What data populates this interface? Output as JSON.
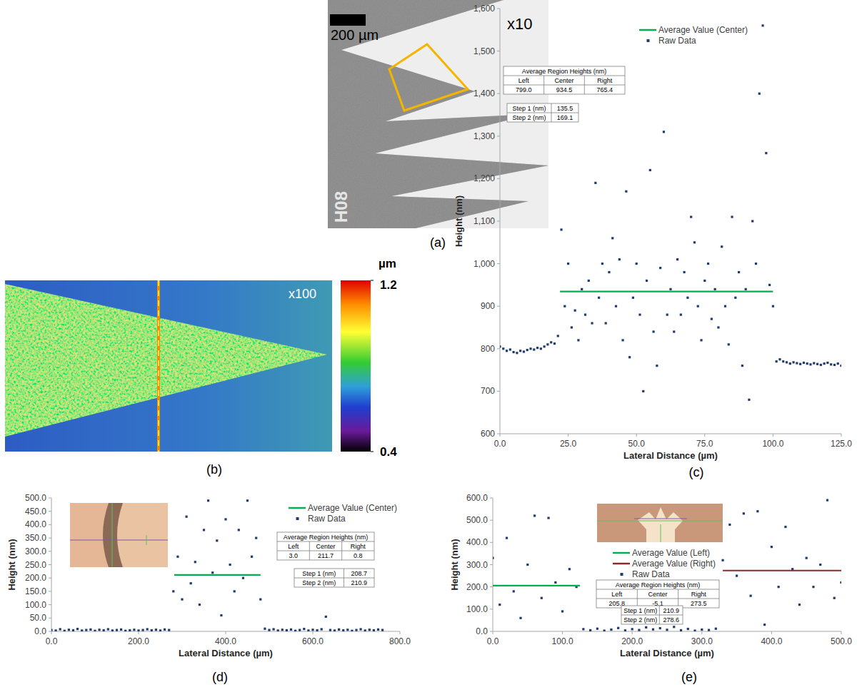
{
  "figure": {
    "panel_a": {
      "label": "(a)",
      "scale_bar": "200 µm",
      "magnification": "x10",
      "sample_id": "H08"
    },
    "panel_b": {
      "label": "(b)",
      "magnification": "x100",
      "colorbar": {
        "unit": "µm",
        "range": [
          0.4,
          1.2
        ],
        "ticks": [
          0.4,
          1.2
        ]
      }
    }
  },
  "chart_data": [
    {
      "type": "scatter",
      "panel_label": "(c)",
      "x_label": "Lateral Distance (µm)",
      "y_label": "Height (nm)",
      "xlim": [
        0,
        125
      ],
      "ylim": [
        600,
        1600
      ],
      "xticks": [
        {
          "value": 0,
          "label": "0.0"
        },
        {
          "value": 25,
          "label": "25.0"
        },
        {
          "value": 50,
          "label": "50.0"
        },
        {
          "value": 75,
          "label": "75.0"
        },
        {
          "value": 100,
          "label": "100.0"
        },
        {
          "value": 125,
          "label": "125.0"
        }
      ],
      "yticks": [
        600,
        700,
        800,
        900,
        {
          "value": 1000,
          "label": "1,000"
        },
        {
          "value": 1100,
          "label": "1,100"
        },
        {
          "value": 1200,
          "label": "1,200"
        },
        {
          "value": 1300,
          "label": "1,300"
        },
        {
          "value": 1400,
          "label": "1,400"
        },
        {
          "value": 1500,
          "label": "1,500"
        },
        {
          "value": 1600,
          "label": "1,600"
        }
      ],
      "grid": false,
      "legend": "top",
      "series": [
        {
          "name": "Average Value (Center)",
          "type": "line",
          "color": "#00b050",
          "x": [
            22,
            100
          ],
          "values": [
            934.5,
            934.5
          ]
        },
        {
          "name": "Raw Data",
          "type": "scatter",
          "marker": "square",
          "color": "#1f3b6f",
          "x": [
            0,
            1.25,
            2.5,
            3.75,
            5,
            6.25,
            7.5,
            8.75,
            10,
            11.25,
            12.5,
            13.75,
            15,
            16.25,
            17.5,
            18.75,
            20,
            21.25,
            22.5,
            23.75,
            25,
            26.25,
            27.5,
            28.75,
            30,
            31.25,
            32.5,
            33.75,
            35,
            36.25,
            37.5,
            38.75,
            40,
            41.25,
            42.5,
            43.75,
            45,
            46.25,
            47.5,
            48.75,
            50,
            51.25,
            52.5,
            53.75,
            55,
            56.25,
            57.5,
            58.75,
            60,
            61.25,
            62.5,
            63.75,
            65,
            66.25,
            67.5,
            68.75,
            70,
            71.25,
            72.5,
            73.75,
            75,
            76.25,
            77.5,
            78.75,
            80,
            81.25,
            82.5,
            83.75,
            85,
            86.25,
            87.5,
            88.75,
            90,
            91.25,
            92.5,
            93.75,
            95,
            96.25,
            97.5,
            98.75,
            100,
            101.25,
            102.5,
            103.75,
            105,
            106.25,
            107.5,
            108.75,
            110,
            111.25,
            112.5,
            113.75,
            115,
            116.25,
            117.5,
            118.75,
            120,
            121.25,
            122.5,
            123.75,
            125
          ],
          "values": [
            805,
            800,
            795,
            798,
            792,
            790,
            795,
            793,
            797,
            800,
            798,
            802,
            800,
            805,
            810,
            815,
            812,
            830,
            1080,
            900,
            1000,
            850,
            890,
            820,
            940,
            880,
            960,
            860,
            1190,
            920,
            1000,
            860,
            980,
            1060,
            900,
            1010,
            820,
            1170,
            780,
            920,
            1000,
            880,
            700,
            960,
            1220,
            840,
            760,
            990,
            1310,
            880,
            940,
            840,
            1010,
            880,
            980,
            920,
            1110,
            1050,
            900,
            820,
            960,
            1000,
            870,
            940,
            850,
            1040,
            900,
            810,
            1110,
            920,
            980,
            760,
            940,
            680,
            1100,
            1000,
            1400,
            1560,
            1260,
            950,
            900,
            770,
            775,
            770,
            768,
            765,
            768,
            766,
            764,
            767,
            765,
            763,
            766,
            764,
            762,
            765,
            767,
            763,
            762,
            765,
            760
          ]
        }
      ],
      "region_table": {
        "title": "Average Region Heights (nm)",
        "columns": [
          "Left",
          "Center",
          "Right"
        ],
        "values": [
          "799.0",
          "934.5",
          "765.4"
        ]
      },
      "step_table": [
        {
          "label": "Step 1 (nm)",
          "value": "135.5"
        },
        {
          "label": "Step 2 (nm)",
          "value": "169.1"
        }
      ]
    },
    {
      "type": "scatter",
      "panel_label": "(d)",
      "x_label": "Lateral Distance (µm)",
      "y_label": "Height (nm)",
      "xlim": [
        0,
        800
      ],
      "ylim": [
        0,
        500
      ],
      "xticks": [
        {
          "value": 0,
          "label": "0.0"
        },
        {
          "value": 200,
          "label": "200.0"
        },
        {
          "value": 400,
          "label": "400.0"
        },
        {
          "value": 600,
          "label": "600.0"
        },
        {
          "value": 800,
          "label": "800.0"
        }
      ],
      "yticks": [
        {
          "value": 0,
          "label": "0.0"
        },
        {
          "value": 50,
          "label": "50.0"
        },
        {
          "value": 100,
          "label": "100.0"
        },
        {
          "value": 150,
          "label": "150.0"
        },
        {
          "value": 200,
          "label": "200.0"
        },
        {
          "value": 250,
          "label": "250.0"
        },
        {
          "value": 300,
          "label": "300.0"
        },
        {
          "value": 350,
          "label": "350.0"
        },
        {
          "value": 400,
          "label": "400.0"
        },
        {
          "value": 450,
          "label": "450.0"
        },
        {
          "value": 500,
          "label": "500.0"
        }
      ],
      "grid": false,
      "legend": "top-right",
      "series": [
        {
          "name": "Average Value (Center)",
          "type": "line",
          "color": "#00b050",
          "x": [
            282,
            480
          ],
          "values": [
            211.7,
            211.7
          ]
        },
        {
          "name": "Raw Data",
          "type": "scatter",
          "marker": "square",
          "color": "#1f3b6f",
          "x": [
            0,
            10,
            20,
            30,
            40,
            50,
            60,
            70,
            80,
            90,
            100,
            110,
            120,
            130,
            140,
            150,
            160,
            170,
            180,
            190,
            200,
            210,
            220,
            230,
            240,
            250,
            260,
            270,
            280,
            290,
            300,
            310,
            320,
            330,
            340,
            350,
            360,
            370,
            380,
            390,
            400,
            410,
            420,
            430,
            440,
            450,
            460,
            470,
            480,
            490,
            500,
            510,
            520,
            530,
            540,
            550,
            560,
            570,
            580,
            590,
            600,
            610,
            620,
            630,
            640,
            650,
            660,
            670,
            680,
            690,
            700,
            710,
            720,
            730,
            740,
            750,
            760
          ],
          "values": [
            5,
            3,
            8,
            2,
            6,
            4,
            9,
            3,
            5,
            7,
            2,
            6,
            4,
            8,
            3,
            5,
            7,
            2,
            4,
            6,
            3,
            5,
            8,
            4,
            6,
            3,
            7,
            5,
            150,
            280,
            120,
            430,
            180,
            260,
            100,
            380,
            490,
            220,
            340,
            60,
            420,
            250,
            150,
            380,
            200,
            490,
            280,
            350,
            120,
            10,
            5,
            8,
            3,
            6,
            4,
            7,
            2,
            5,
            9,
            3,
            6,
            4,
            8,
            55,
            5,
            3,
            7,
            4,
            6,
            2,
            5,
            8,
            3,
            6,
            4,
            7,
            5
          ]
        }
      ],
      "region_table": {
        "title": "Average Region Heights (nm)",
        "columns": [
          "Left",
          "Center",
          "Right"
        ],
        "values": [
          "3.0",
          "211.7",
          "0.8"
        ]
      },
      "step_table": [
        {
          "label": "Step 1 (nm)",
          "value": "208.7"
        },
        {
          "label": "Step 2 (nm)",
          "value": "210.9"
        }
      ]
    },
    {
      "type": "scatter",
      "panel_label": "(e)",
      "x_label": "Lateral Distance (µm)",
      "y_label": "Height (nm)",
      "xlim": [
        0,
        500
      ],
      "ylim": [
        0,
        600
      ],
      "xticks": [
        {
          "value": 0,
          "label": "0.0"
        },
        {
          "value": 100,
          "label": "100.0"
        },
        {
          "value": 200,
          "label": "200.0"
        },
        {
          "value": 300,
          "label": "300.0"
        },
        {
          "value": 400,
          "label": "400.0"
        },
        {
          "value": 500,
          "label": "500.0"
        }
      ],
      "yticks": [
        {
          "value": 0,
          "label": "0.0"
        },
        {
          "value": 100,
          "label": "100.0"
        },
        {
          "value": 200,
          "label": "200.0"
        },
        {
          "value": 300,
          "label": "300.0"
        },
        {
          "value": 400,
          "label": "400.0"
        },
        {
          "value": 500,
          "label": "500.0"
        },
        {
          "value": 600,
          "label": "600.0"
        }
      ],
      "grid": false,
      "legend": "top",
      "series": [
        {
          "name": "Average Value (Left)",
          "type": "line",
          "color": "#00b050",
          "x": [
            0,
            125
          ],
          "values": [
            205.8,
            205.8
          ]
        },
        {
          "name": "Average Value (Right)",
          "type": "line",
          "color": "#8b2a2a",
          "x": [
            330,
            500
          ],
          "values": [
            273.5,
            273.5
          ]
        },
        {
          "name": "Raw Data",
          "type": "scatter",
          "marker": "square",
          "color": "#1f3b6f",
          "x": [
            0,
            10,
            20,
            30,
            40,
            50,
            60,
            70,
            80,
            90,
            100,
            110,
            120,
            130,
            140,
            150,
            160,
            170,
            180,
            190,
            200,
            210,
            220,
            230,
            240,
            250,
            260,
            270,
            280,
            290,
            300,
            310,
            320,
            330,
            340,
            350,
            360,
            370,
            380,
            390,
            400,
            410,
            420,
            430,
            440,
            450,
            460,
            470,
            480,
            490,
            500
          ],
          "values": [
            330,
            120,
            420,
            180,
            60,
            300,
            520,
            150,
            510,
            220,
            90,
            280,
            200,
            10,
            5,
            12,
            3,
            8,
            15,
            4,
            10,
            6,
            18,
            9,
            14,
            7,
            20,
            5,
            11,
            3,
            8,
            6,
            12,
            320,
            480,
            250,
            530,
            160,
            540,
            30,
            380,
            200,
            470,
            280,
            120,
            330,
            200,
            300,
            590,
            150,
            220
          ]
        }
      ],
      "region_table": {
        "title": "Average Region Heights (nm)",
        "columns": [
          "Left",
          "Center",
          "Right"
        ],
        "values": [
          "205.8",
          "-5.1",
          "273.5"
        ]
      },
      "step_table": [
        {
          "label": "Step 1 (nm)",
          "value": "210.9"
        },
        {
          "label": "Step 2 (nm)",
          "value": "278.6"
        }
      ]
    }
  ]
}
